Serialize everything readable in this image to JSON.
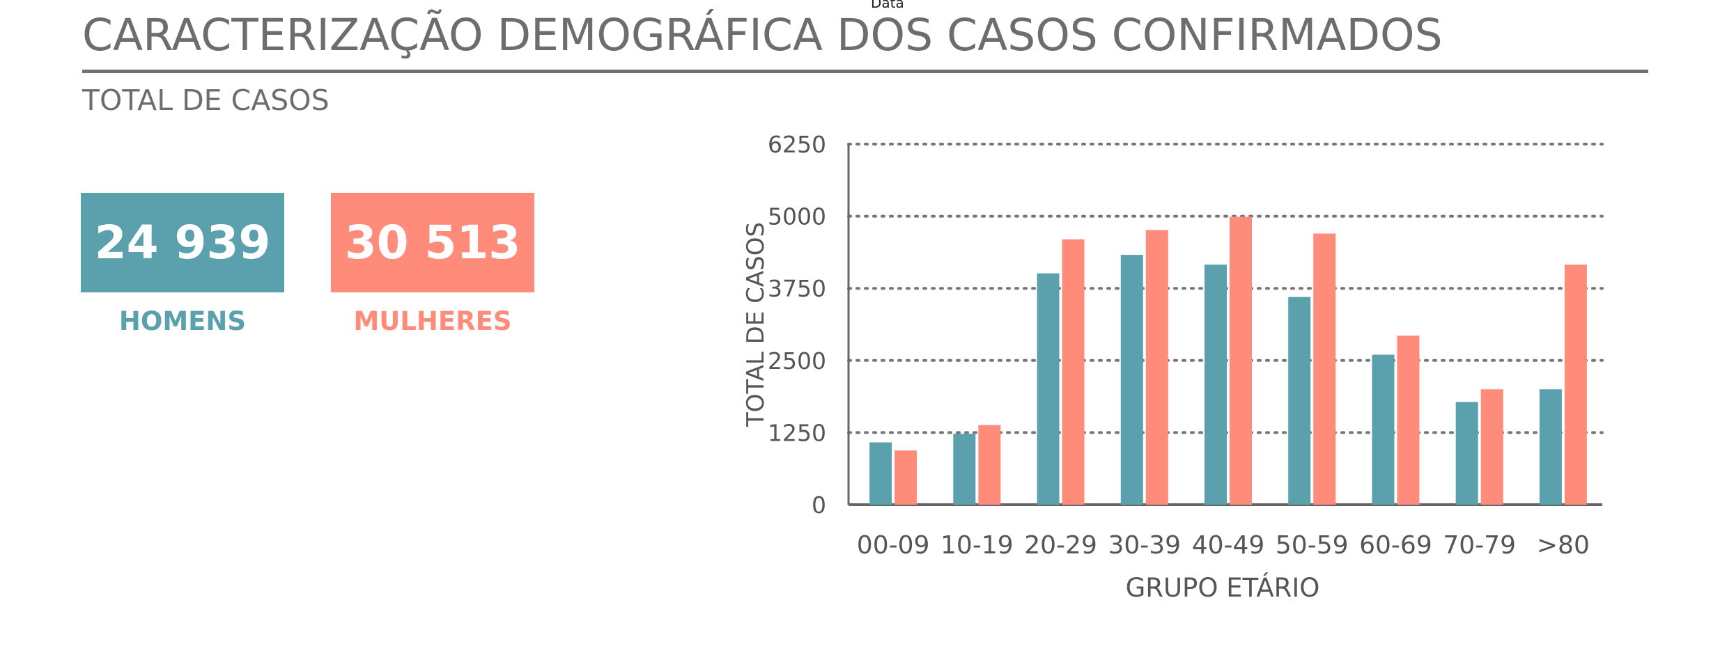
{
  "top_label": "Data",
  "title": "CARACTERIZAÇÃO DEMOGRÁFICA DOS CASOS CONFIRMADOS",
  "subtitle": "TOTAL DE CASOS",
  "kpis": {
    "men": {
      "value": "24 939",
      "label": "HOMENS",
      "color": "#5aa0ad"
    },
    "women": {
      "value": "30 513",
      "label": "MULHERES",
      "color": "#ff8c7a"
    }
  },
  "chart_data": {
    "type": "bar",
    "categories": [
      "00-09",
      "10-19",
      "20-29",
      "30-39",
      "40-49",
      "50-59",
      "60-69",
      "70-79",
      ">80"
    ],
    "series": [
      {
        "name": "HOMENS",
        "color": "#5aa0ad",
        "values": [
          1080,
          1230,
          4010,
          4330,
          4160,
          3600,
          2600,
          1780,
          2000
        ]
      },
      {
        "name": "MULHERES",
        "color": "#ff8c7a",
        "values": [
          940,
          1380,
          4600,
          4760,
          4990,
          4700,
          2930,
          2000,
          4160
        ]
      }
    ],
    "xlabel": "GRUPO ETÁRIO",
    "ylabel": "TOTAL DE CASOS",
    "ylim": [
      0,
      6250
    ],
    "yticks": [
      0,
      1250,
      2500,
      3750,
      5000,
      6250
    ],
    "grid": "dotted horizontal"
  }
}
